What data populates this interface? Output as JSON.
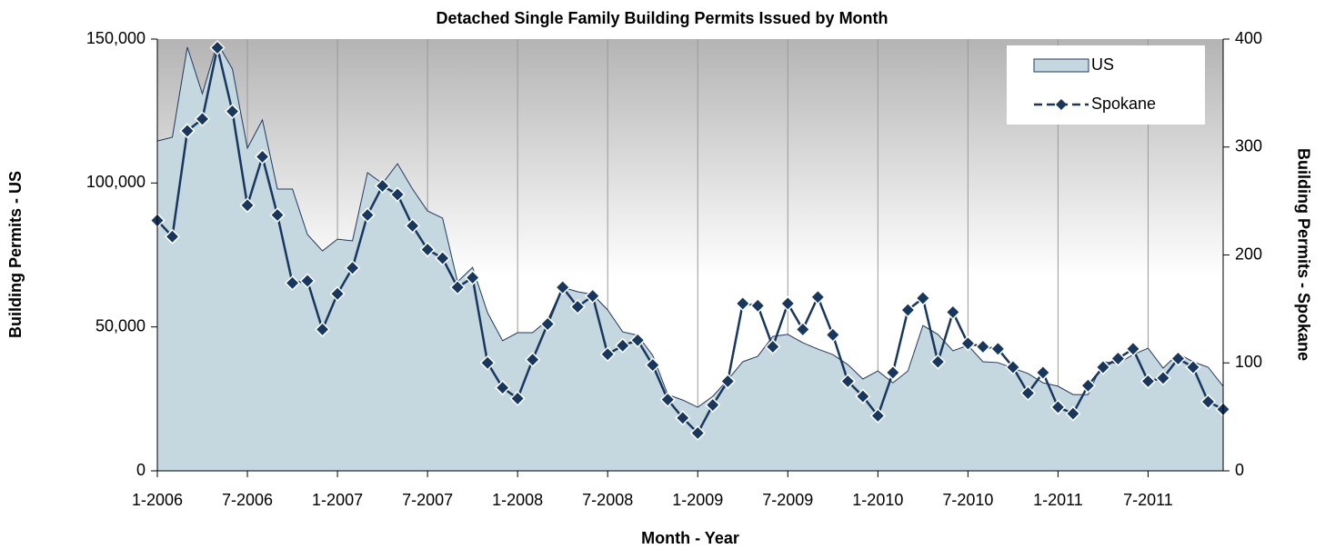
{
  "chart_data": {
    "type": "line",
    "title": "Detached Single Family Building Permits Issued by Month",
    "x_label": "Month - Year",
    "y_label": "Building Permits - US",
    "y2_label": "Building Permits - Spokane",
    "categories": [
      "1-2006",
      null,
      null,
      null,
      null,
      null,
      "7-2006",
      null,
      null,
      null,
      null,
      null,
      "1-2007",
      null,
      null,
      null,
      null,
      null,
      "7-2007",
      null,
      null,
      null,
      null,
      null,
      "1-2008",
      null,
      null,
      null,
      null,
      null,
      "7-2008",
      null,
      null,
      null,
      null,
      null,
      "1-2009",
      null,
      null,
      null,
      null,
      null,
      "7-2009",
      null,
      null,
      null,
      null,
      null,
      "1-2010",
      null,
      null,
      null,
      null,
      null,
      "7-2010",
      null,
      null,
      null,
      null,
      null,
      "1-2011",
      null,
      null,
      null,
      null,
      null,
      "7-2011",
      null,
      null,
      null,
      null,
      null
    ],
    "series": [
      {
        "name": "US",
        "style": "area",
        "color": "#c5d8e0",
        "line_color": "#1f3a60",
        "values": [
          114600,
          115900,
          147200,
          131000,
          148700,
          139600,
          112100,
          121900,
          97900,
          97900,
          82100,
          76400,
          80500,
          79900,
          103600,
          99800,
          106700,
          97900,
          90300,
          87800,
          65700,
          70700,
          54900,
          45200,
          48000,
          48000,
          52400,
          63800,
          62200,
          61300,
          55900,
          48300,
          47100,
          40100,
          26500,
          24600,
          22100,
          25900,
          31600,
          37900,
          39800,
          46700,
          47400,
          44500,
          42300,
          40400,
          36900,
          31900,
          34700,
          30600,
          34700,
          50500,
          47400,
          41700,
          43600,
          37900,
          37600,
          35700,
          33800,
          30600,
          29400,
          26500,
          26500,
          37900,
          37300,
          40400,
          42600,
          35700,
          40700,
          37900,
          36000,
          29400
        ]
      },
      {
        "name": "Spokane",
        "style": "line-marker",
        "axis": "y2",
        "color": "#17375e",
        "values": [
          232,
          217,
          315,
          326,
          392,
          333,
          246,
          291,
          237,
          174,
          176,
          131,
          164,
          188,
          237,
          264,
          256,
          227,
          205,
          197,
          170,
          179,
          100,
          77,
          67,
          103,
          136,
          170,
          152,
          162,
          108,
          116,
          121,
          98,
          66,
          49,
          35,
          61,
          83,
          155,
          153,
          115,
          155,
          131,
          161,
          126,
          83,
          69,
          51,
          91,
          149,
          160,
          101,
          147,
          118,
          115,
          113,
          96,
          72,
          91,
          59,
          53,
          79,
          96,
          104,
          113,
          83,
          86,
          104,
          96,
          64,
          57
        ]
      }
    ],
    "ylim": [
      0,
      150000
    ],
    "yticks": [
      0,
      {
        "value": 50000,
        "label": "50,000"
      },
      {
        "value": 100000,
        "label": "100,000"
      },
      {
        "value": 150000,
        "label": "150,000"
      }
    ],
    "y2lim": [
      0,
      400
    ],
    "y2ticks": [
      0,
      100,
      200,
      300,
      400
    ],
    "grid": true,
    "legend": "top-right"
  }
}
